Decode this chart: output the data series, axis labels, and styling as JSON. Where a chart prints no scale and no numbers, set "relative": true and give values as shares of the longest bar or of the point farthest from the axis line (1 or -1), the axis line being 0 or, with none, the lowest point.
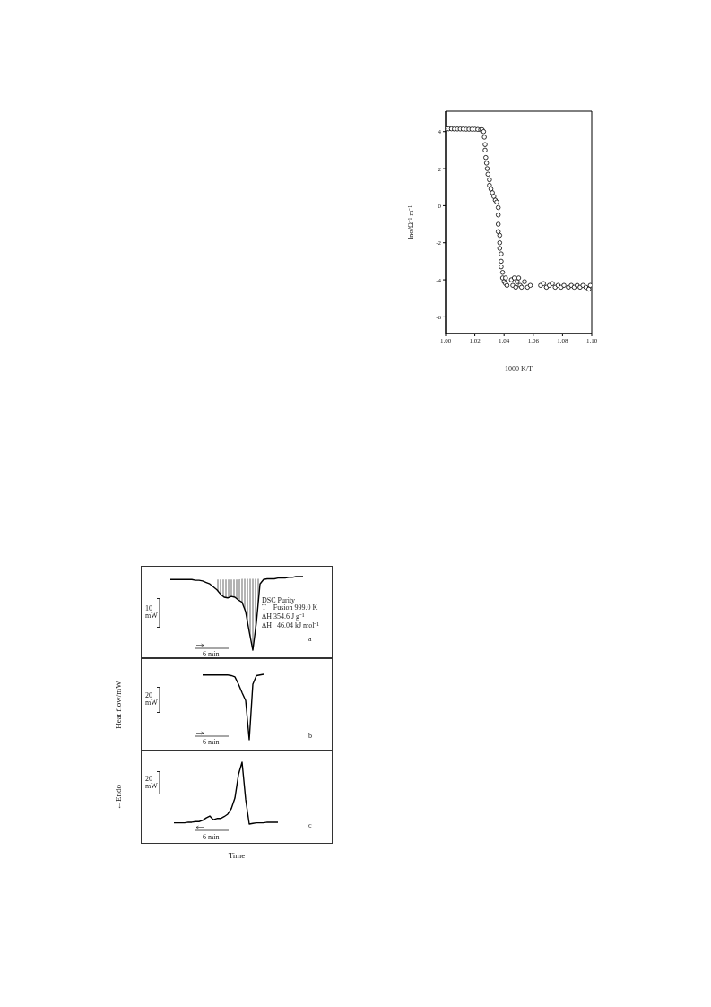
{
  "chart_data": [
    {
      "type": "scatter",
      "xlabel": "1000 K/T",
      "ylabel": "lnσ/Ω⁻¹ m⁻¹",
      "color": "#000000",
      "marker": "circle",
      "xlim": [
        1.0,
        1.1
      ],
      "xticks": [
        {
          "value": 1.0,
          "label": "1.00"
        },
        1.02,
        1.04,
        1.06,
        1.08,
        {
          "value": 1.1,
          "label": "1.10"
        }
      ],
      "ylim": [
        -6.9,
        5.1
      ],
      "yticks": [
        -6,
        -4,
        -2,
        0,
        2,
        4
      ],
      "x": [
        1.0,
        1.002,
        1.004,
        1.006,
        1.008,
        1.01,
        1.012,
        1.014,
        1.016,
        1.018,
        1.02,
        1.022,
        1.024,
        1.025,
        1.026,
        1.0265,
        1.027,
        1.027,
        1.0275,
        1.028,
        1.0285,
        1.029,
        1.03,
        1.03,
        1.031,
        1.032,
        1.033,
        1.034,
        1.035,
        1.036,
        1.036,
        1.036,
        1.036,
        1.037,
        1.037,
        1.037,
        1.038,
        1.038,
        1.038,
        1.039,
        1.039,
        1.04,
        1.041,
        1.041,
        1.042,
        1.045,
        1.046,
        1.047,
        1.048,
        1.049,
        1.05,
        1.051,
        1.052,
        1.054,
        1.056,
        1.058,
        1.065,
        1.067,
        1.069,
        1.071,
        1.073,
        1.075,
        1.077,
        1.079,
        1.081,
        1.084,
        1.086,
        1.088,
        1.09,
        1.092,
        1.094,
        1.096,
        1.098,
        1.099
      ],
      "values": [
        4.15,
        4.15,
        4.15,
        4.14,
        4.14,
        4.14,
        4.14,
        4.13,
        4.13,
        4.13,
        4.13,
        4.12,
        4.1,
        4.1,
        4.0,
        3.7,
        3.3,
        3.0,
        2.6,
        2.3,
        2.0,
        1.7,
        1.4,
        1.1,
        0.9,
        0.7,
        0.5,
        0.3,
        0.2,
        -0.1,
        -0.5,
        -1.0,
        -1.4,
        -1.6,
        -2.0,
        -2.3,
        -2.6,
        -3.0,
        -3.3,
        -3.6,
        -3.9,
        -4.1,
        -4.2,
        -3.9,
        -4.3,
        -4.0,
        -4.3,
        -3.9,
        -4.4,
        -4.1,
        -3.9,
        -4.3,
        -4.4,
        -4.1,
        -4.4,
        -4.3,
        -4.3,
        -4.2,
        -4.4,
        -4.3,
        -4.2,
        -4.4,
        -4.3,
        -4.4,
        -4.3,
        -4.4,
        -4.3,
        -4.4,
        -4.3,
        -4.4,
        -4.3,
        -4.4,
        -4.5,
        -4.3
      ]
    },
    {
      "type": "line",
      "relative": true,
      "annotations": [
        "10 mW",
        "6 min",
        "a",
        "DSC Purity",
        "T    Fusion 999.0 K",
        "ΔH 354.6 J g⁻¹",
        "ΔH   46.04 kJ mol⁻¹"
      ],
      "categories": [
        null,
        null,
        null,
        null,
        null,
        null,
        null,
        null,
        null,
        null,
        null,
        null,
        null,
        null,
        null,
        null,
        null,
        null,
        null,
        null,
        null,
        null,
        null,
        null,
        null,
        null,
        null,
        null,
        null,
        null,
        null,
        null,
        null,
        null,
        null,
        null,
        null,
        null,
        null,
        null,
        null,
        null,
        null,
        null,
        null,
        null,
        null,
        null,
        null,
        null,
        null,
        null,
        null,
        null
      ],
      "series": [
        {
          "color": "#000000",
          "lower": [
            null,
            null,
            null,
            null,
            null,
            null,
            null,
            null,
            null,
            null,
            null,
            null,
            null,
            null,
            null,
            null,
            null,
            null,
            null,
            null,
            null,
            0.82,
            0.76,
            0.72,
            0.71,
            0.73,
            0.72,
            0.68,
            0.65,
            0.52,
            0.25,
            0,
            0.38,
            0.9,
            null,
            null,
            null,
            null,
            null,
            null,
            null,
            null,
            null,
            null,
            null,
            null,
            null,
            null,
            null,
            null,
            null,
            null,
            null,
            null
          ],
          "upper": [
            null,
            null,
            null,
            null,
            null,
            null,
            null,
            null,
            null,
            null,
            null,
            null,
            null,
            null,
            null,
            null,
            null,
            null,
            null,
            null,
            null,
            0.96,
            0.96,
            0.96,
            0.96,
            0.96,
            0.96,
            0.96,
            0.97,
            0.97,
            0.97,
            0.97,
            0.97,
            0.97,
            null,
            null,
            null,
            null,
            null,
            null,
            null,
            null,
            null,
            null,
            null,
            null,
            null,
            null,
            null,
            null,
            null,
            null,
            null,
            null
          ],
          "values": [
            null,
            null,
            null,
            null,
            null,
            null,
            null,
            null,
            0.96,
            0.96,
            0.96,
            0.96,
            0.96,
            0.96,
            0.96,
            0.95,
            0.95,
            0.94,
            0.92,
            0.9,
            0.86,
            0.82,
            0.76,
            0.72,
            0.71,
            0.73,
            0.72,
            0.68,
            0.65,
            0.52,
            0.25,
            0,
            0.38,
            0.9,
            0.96,
            0.97,
            0.97,
            0.97,
            0.98,
            0.98,
            0.98,
            0.99,
            0.99,
            1,
            1,
            1,
            null,
            null,
            null,
            null,
            null,
            null,
            null,
            null
          ]
        }
      ]
    },
    {
      "type": "line",
      "relative": true,
      "ylabel": "Heat flow/mW",
      "annotations": [
        "20 mW",
        "6 min",
        "b"
      ],
      "categories": [
        null,
        null,
        null,
        null,
        null,
        null,
        null,
        null,
        null,
        null,
        null,
        null,
        null,
        null,
        null,
        null,
        null,
        null,
        null,
        null,
        null,
        null,
        null,
        null,
        null,
        null,
        null,
        null,
        null,
        null,
        null,
        null,
        null,
        null,
        null,
        null,
        null,
        null,
        null,
        null,
        null,
        null,
        null,
        null,
        null,
        null,
        null,
        null,
        null,
        null,
        null,
        null,
        null,
        null
      ],
      "series": [
        {
          "color": "#000000",
          "values": [
            null,
            null,
            null,
            null,
            null,
            null,
            null,
            null,
            null,
            null,
            null,
            null,
            null,
            null,
            null,
            null,
            null,
            0.99,
            0.99,
            0.99,
            0.99,
            0.99,
            0.99,
            0.99,
            0.99,
            0.98,
            0.96,
            0.85,
            0.72,
            0.6,
            0,
            0.85,
            0.98,
            0.99,
            1,
            null,
            null,
            null,
            null,
            null,
            null,
            null,
            null,
            null,
            null,
            null,
            null,
            null,
            null,
            null,
            null,
            null,
            null,
            null
          ]
        }
      ]
    },
    {
      "type": "line",
      "relative": true,
      "ylabel": "←Endo",
      "xlabel": "Time",
      "annotations": [
        "20 mW",
        "6 min",
        "c"
      ],
      "categories": [
        null,
        null,
        null,
        null,
        null,
        null,
        null,
        null,
        null,
        null,
        null,
        null,
        null,
        null,
        null,
        null,
        null,
        null,
        null,
        null,
        null,
        null,
        null,
        null,
        null,
        null,
        null,
        null,
        null,
        null,
        null,
        null,
        null,
        null,
        null,
        null,
        null,
        null,
        null,
        null,
        null,
        null,
        null,
        null,
        null,
        null,
        null,
        null,
        null,
        null,
        null,
        null,
        null,
        null
      ],
      "series": [
        {
          "color": "#000000",
          "values": [
            null,
            null,
            null,
            null,
            null,
            null,
            null,
            null,
            null,
            0.02,
            0.02,
            0.02,
            0.02,
            0.03,
            0.03,
            0.04,
            0.04,
            0.06,
            0.1,
            0.13,
            0.07,
            0.09,
            0.09,
            0.12,
            0.16,
            0.25,
            0.42,
            0.8,
            1,
            0.4,
            0,
            0.01,
            0.02,
            0.02,
            0.02,
            0.03,
            0.03,
            0.03,
            0.03,
            null,
            null,
            null,
            null,
            null,
            null,
            null,
            null,
            null,
            null,
            null,
            null,
            null,
            null,
            null
          ]
        }
      ]
    }
  ]
}
